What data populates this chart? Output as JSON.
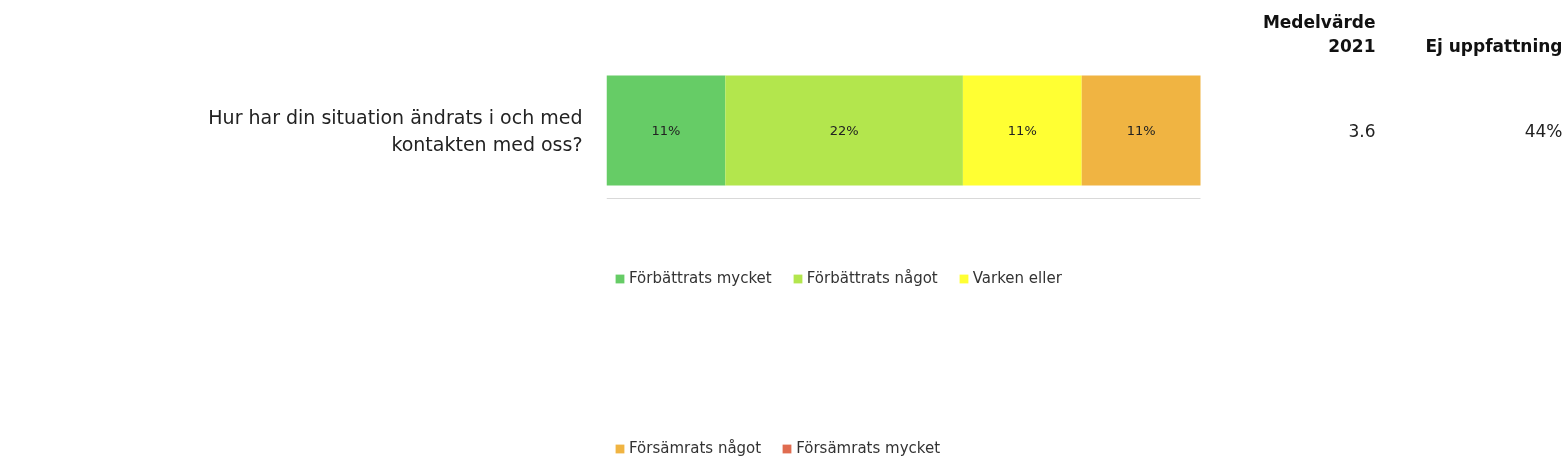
{
  "chart_data": {
    "type": "bar",
    "orientation": "horizontal",
    "stacked": true,
    "categories": [
      "Hur har din situation ändrats i och med kontakten med oss?"
    ],
    "series": [
      {
        "name": "Förbättrats mycket",
        "color": "#66cc66",
        "values": [
          11
        ],
        "value_labels": [
          "11%"
        ]
      },
      {
        "name": "Förbättrats något",
        "color": "#b3e64d",
        "values": [
          22
        ],
        "value_labels": [
          "22%"
        ]
      },
      {
        "name": "Varken eller",
        "color": "#ffff33",
        "values": [
          11
        ],
        "value_labels": [
          "11%"
        ]
      },
      {
        "name": "Försämrats något",
        "color": "#f0b442",
        "values": [
          11
        ],
        "value_labels": [
          "11%"
        ]
      },
      {
        "name": "Försämrats mycket",
        "color": "#e06c50",
        "values": [
          0
        ],
        "value_labels": [
          null
        ]
      }
    ],
    "xlim": [
      0,
      55
    ],
    "legend": "bottom",
    "grid": false,
    "annotations": [
      "Medelvärde\n2021",
      "Ej uppfattning",
      "3.6",
      "44%"
    ]
  }
}
